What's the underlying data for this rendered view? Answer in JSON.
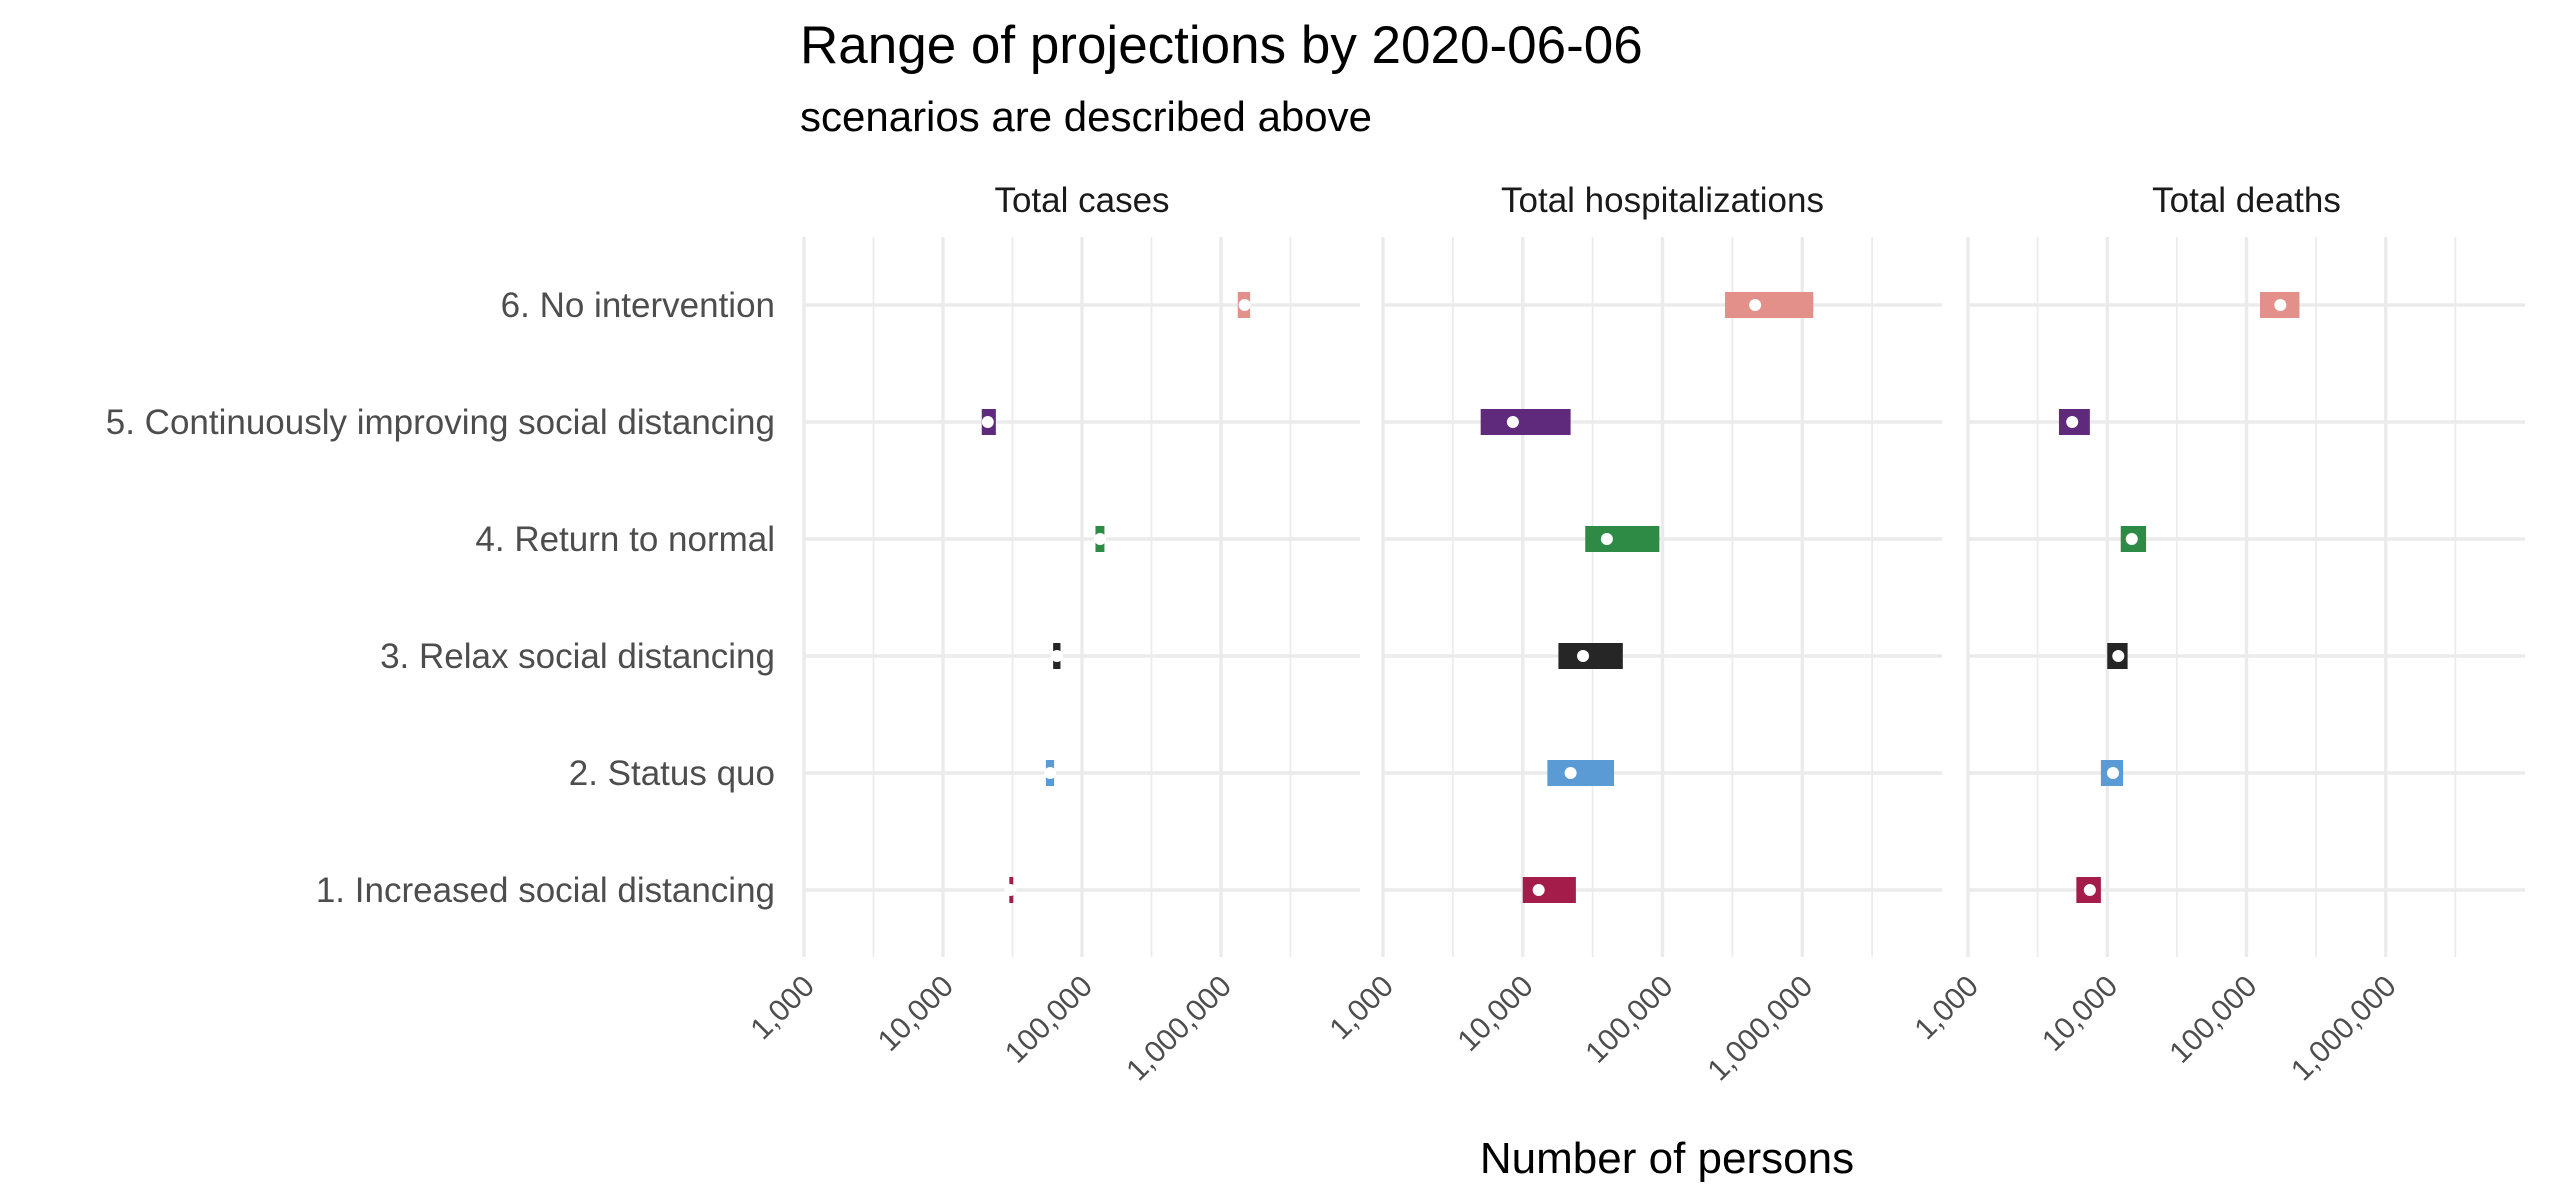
{
  "chart_data": {
    "type": "range",
    "title": "Range of projections by 2020-06-06",
    "subtitle": "scenarios are described above",
    "xlabel": "Number of persons",
    "x_scale": "log10",
    "xlim": [
      1000,
      10000000
    ],
    "x_ticks": [
      1000,
      10000,
      100000,
      1000000
    ],
    "x_tick_labels": [
      "1,000",
      "10,000",
      "100,000",
      "1,000,000"
    ],
    "grid": true,
    "categories": [
      "1. Increased social distancing",
      "2. Status quo",
      "3. Relax social distancing",
      "4. Return to normal",
      "5. Continuously improving social distancing",
      "6. No intervention"
    ],
    "colors": [
      "#a41c4a",
      "#5b9bd5",
      "#262626",
      "#2e8b46",
      "#5f2a7c",
      "#e38f8a"
    ],
    "panels": [
      {
        "name": "Total cases",
        "ranges": [
          {
            "low": 30000,
            "high": 31500,
            "median": 30500
          },
          {
            "low": 55000,
            "high": 63000,
            "median": 59000
          },
          {
            "low": 62000,
            "high": 70000,
            "median": 66000
          },
          {
            "low": 125000,
            "high": 145000,
            "median": 135000
          },
          {
            "low": 19000,
            "high": 24000,
            "median": 21000
          },
          {
            "low": 1320000,
            "high": 1620000,
            "median": 1480000
          }
        ]
      },
      {
        "name": "Total hospitalizations",
        "ranges": [
          {
            "low": 10000,
            "high": 24000,
            "median": 13000
          },
          {
            "low": 15000,
            "high": 45000,
            "median": 22000
          },
          {
            "low": 18000,
            "high": 52000,
            "median": 27000
          },
          {
            "low": 28000,
            "high": 95000,
            "median": 40000
          },
          {
            "low": 5000,
            "high": 22000,
            "median": 8500
          },
          {
            "low": 280000,
            "high": 1200000,
            "median": 460000
          }
        ]
      },
      {
        "name": "Total deaths",
        "ranges": [
          {
            "low": 6000,
            "high": 9000,
            "median": 7500
          },
          {
            "low": 9000,
            "high": 13000,
            "median": 11000
          },
          {
            "low": 10000,
            "high": 14000,
            "median": 12000
          },
          {
            "low": 12500,
            "high": 19000,
            "median": 15000
          },
          {
            "low": 4500,
            "high": 7500,
            "median": 5600
          },
          {
            "low": 125000,
            "high": 240000,
            "median": 175000
          }
        ]
      }
    ]
  }
}
